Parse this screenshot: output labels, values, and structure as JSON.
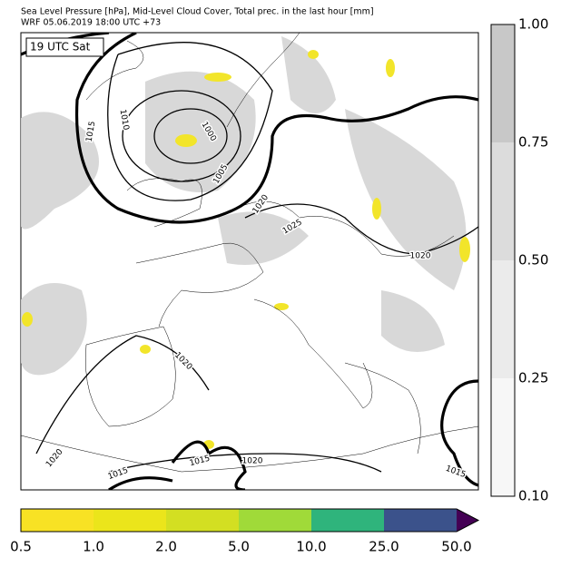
{
  "header": {
    "title": "Sea Level Pressure [hPa], Mid-Level Cloud Cover, Total prec. in the last hour [mm]",
    "subtitle": "WRF 05.06.2019 18:00 UTC +73"
  },
  "map": {
    "time_label": "19 UTC Sat",
    "isobar_labels": [
      "1015",
      "1010",
      "1000",
      "1005",
      "1020",
      "1025",
      "1020",
      "1020",
      "1020",
      "1015",
      "1015",
      "1020",
      "1015"
    ]
  },
  "cloud_colorbar": {
    "ticks": [
      "0.10",
      "0.25",
      "0.50",
      "0.75",
      "1.00"
    ],
    "colors": [
      "#f7f7f7",
      "#ebebeb",
      "#dcdcdc",
      "#c8c8c8"
    ]
  },
  "precip_colorbar": {
    "ticks": [
      "0.5",
      "1.0",
      "2.0",
      "5.0",
      "10.0",
      "25.0",
      "50.0"
    ],
    "colors": [
      "#f8e224",
      "#ebe51b",
      "#d3df22",
      "#a0da39",
      "#2fb47c",
      "#3b528b"
    ],
    "over_color": "#440154"
  }
}
